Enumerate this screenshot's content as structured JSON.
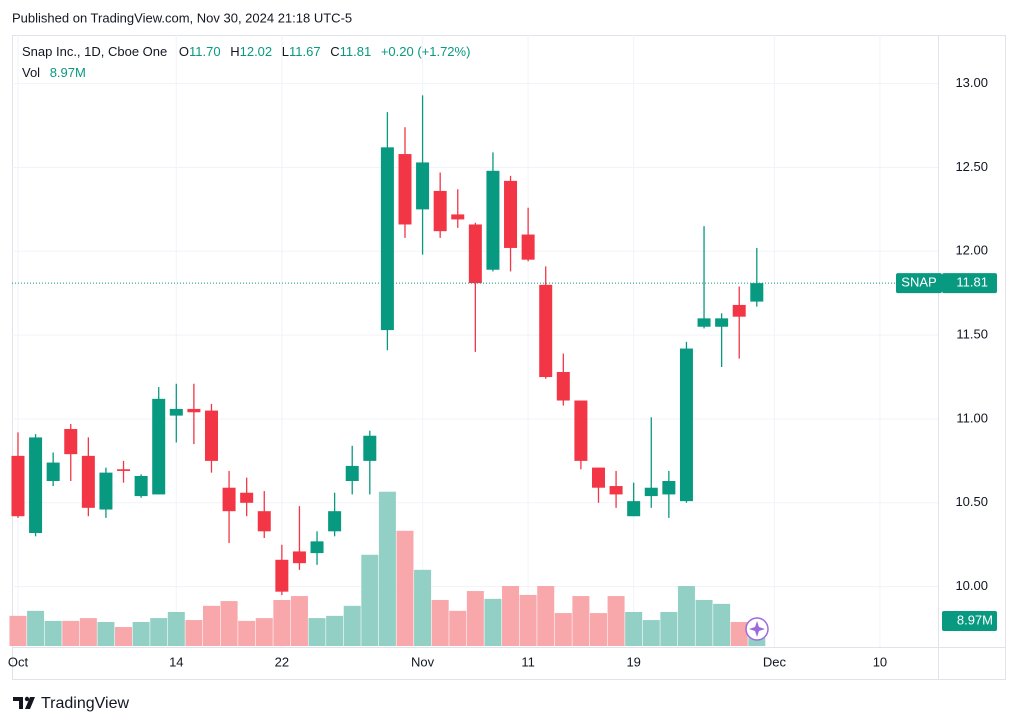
{
  "header": "Published on TradingView.com, Nov 30, 2024 21:18 UTC-5",
  "footer": "TradingView",
  "chart_data": {
    "type": "candlestick",
    "title": "Snap Inc., 1D, Cboe One",
    "symbol": "SNAP",
    "legend": {
      "o": "O",
      "open": "11.70",
      "h": "H",
      "l": "L",
      "c": "C",
      "change": "+0.20 (+1.72%)",
      "vol": "Vol",
      "volume": "8.97M"
    },
    "open": [
      10.78,
      10.32,
      10.63,
      10.94,
      10.78,
      10.46,
      10.7,
      10.54,
      10.55,
      11.02,
      11.06,
      11.05,
      10.59,
      10.56,
      10.45,
      10.16,
      10.21,
      10.2,
      10.33,
      10.63,
      10.75,
      11.53,
      12.58,
      12.25,
      12.36,
      12.22,
      12.16,
      11.89,
      12.42,
      12.1,
      11.8,
      11.28,
      11.11,
      10.71,
      10.6,
      10.42,
      10.54,
      10.55,
      10.51,
      11.55,
      11.55,
      11.68,
      11.7
    ],
    "high": [
      10.92,
      10.91,
      10.8,
      10.97,
      10.89,
      10.71,
      10.75,
      10.67,
      11.19,
      11.21,
      11.21,
      11.09,
      10.69,
      10.65,
      10.57,
      10.25,
      10.48,
      10.33,
      10.56,
      10.84,
      10.93,
      12.83,
      12.74,
      12.93,
      12.47,
      12.37,
      12.17,
      12.59,
      12.45,
      12.26,
      11.91,
      11.39,
      11.11,
      10.71,
      10.69,
      10.62,
      11.01,
      10.69,
      11.46,
      12.15,
      11.63,
      11.79,
      12.02
    ],
    "low": [
      10.41,
      10.3,
      10.6,
      10.63,
      10.42,
      10.41,
      10.62,
      10.53,
      10.55,
      10.86,
      10.85,
      10.68,
      10.26,
      10.42,
      10.29,
      9.95,
      10.1,
      10.13,
      10.3,
      10.55,
      10.55,
      11.41,
      12.08,
      11.98,
      12.08,
      12.14,
      11.4,
      11.88,
      11.88,
      11.94,
      11.24,
      11.08,
      10.7,
      10.5,
      10.47,
      10.42,
      10.47,
      10.41,
      10.5,
      11.54,
      11.31,
      11.36,
      11.67
    ],
    "close": [
      10.42,
      10.89,
      10.74,
      10.79,
      10.47,
      10.68,
      10.69,
      10.66,
      11.12,
      11.06,
      11.04,
      10.75,
      10.45,
      10.5,
      10.33,
      9.97,
      10.14,
      10.27,
      10.45,
      10.72,
      10.9,
      12.62,
      12.16,
      12.53,
      12.12,
      12.19,
      11.81,
      12.48,
      12.02,
      11.95,
      11.25,
      11.11,
      10.75,
      10.59,
      10.55,
      10.51,
      10.59,
      10.63,
      11.42,
      11.6,
      11.6,
      11.61,
      11.81
    ],
    "volume": [
      10.8,
      12.6,
      9.0,
      9.0,
      10.0,
      8.6,
      6.8,
      8.6,
      10.0,
      12.2,
      9.3,
      14.4,
      16.1,
      9.0,
      10.0,
      16.5,
      17.9,
      10.0,
      10.8,
      14.4,
      32.7,
      55.3,
      41.3,
      27.3,
      16.5,
      12.6,
      19.7,
      16.9,
      21.5,
      18.3,
      21.5,
      11.8,
      17.9,
      11.8,
      17.9,
      12.2,
      9.3,
      12.2,
      21.5,
      16.5,
      15.1,
      8.6,
      8.97
    ],
    "colors": {
      "up": "#089981",
      "down": "#f23645",
      "volume_up": "#92d0c5",
      "volume_down": "#f8a7ab"
    },
    "ylim": [
      9.64,
      13.29
    ],
    "yticks": [
      {
        "value": 10,
        "label": "10.00"
      },
      {
        "value": 10.5,
        "label": "10.50"
      },
      {
        "value": 11,
        "label": "11.00"
      },
      {
        "value": 11.5,
        "label": "11.50"
      },
      {
        "value": 12,
        "label": "12.00"
      },
      {
        "value": 12.5,
        "label": "12.50"
      },
      {
        "value": 13,
        "label": "13.00"
      }
    ],
    "volume_ylim": [
      0,
      219
    ],
    "xlim": [
      -0.34,
      52.3
    ],
    "xticks": [
      {
        "value": 0,
        "label": "Oct"
      },
      {
        "value": 9,
        "label": "14"
      },
      {
        "value": 15,
        "label": "22"
      },
      {
        "value": 23,
        "label": "Nov"
      },
      {
        "value": 29,
        "label": "11"
      },
      {
        "value": 35,
        "label": "19"
      },
      {
        "value": 43,
        "label": "Dec"
      },
      {
        "value": 49,
        "label": "10"
      }
    ],
    "grid": true
  }
}
